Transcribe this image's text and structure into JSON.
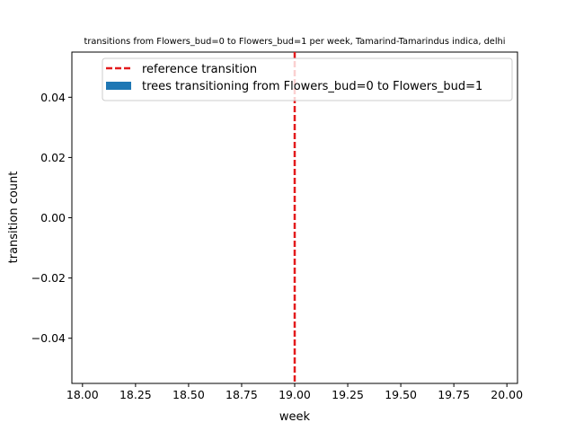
{
  "chart_data": {
    "type": "bar",
    "title": "transitions from Flowers_bud=0 to Flowers_bud=1 per week, Tamarind-Tamarindus indica, delhi",
    "xlabel": "week",
    "ylabel": "transition count",
    "xlim": [
      17.95,
      20.05
    ],
    "ylim": [
      -0.055,
      0.055
    ],
    "x_ticks": [
      18.0,
      18.25,
      18.5,
      18.75,
      19.0,
      19.25,
      19.5,
      19.75,
      20.0
    ],
    "x_tick_labels": [
      "18.00",
      "18.25",
      "18.50",
      "18.75",
      "19.00",
      "19.25",
      "19.50",
      "19.75",
      "20.00"
    ],
    "y_ticks": [
      -0.04,
      -0.02,
      0.0,
      0.02,
      0.04
    ],
    "y_tick_labels": [
      "−0.04",
      "−0.02",
      "0.00",
      "0.02",
      "0.04"
    ],
    "series": [
      {
        "name": "trees transitioning from Flowers_bud=0 to Flowers_bud=1",
        "kind": "bar",
        "color": "#1f77b4",
        "x": [],
        "values": []
      }
    ],
    "reference_lines": [
      {
        "name": "reference transition",
        "x": 19.0,
        "color": "#e31a1c",
        "style": "dashed"
      }
    ],
    "legend": {
      "placement": "top-right"
    },
    "grid": false
  }
}
